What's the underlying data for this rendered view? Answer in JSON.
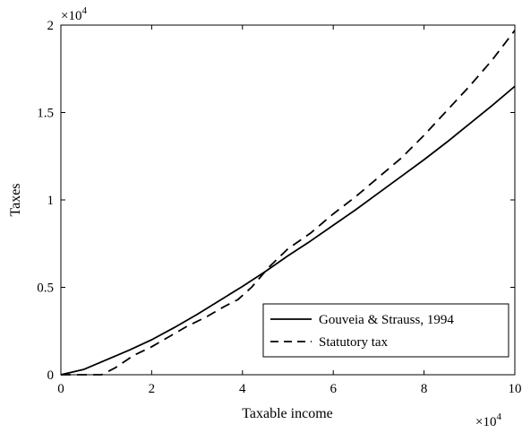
{
  "chart_data": {
    "type": "line",
    "xlabel": "Taxable income",
    "ylabel": "Taxes",
    "xlim": [
      0,
      100000
    ],
    "ylim": [
      0,
      20000
    ],
    "x_ticks": [
      0,
      20000,
      40000,
      60000,
      80000,
      100000
    ],
    "x_tick_labels": [
      "0",
      "2",
      "4",
      "6",
      "8",
      "10"
    ],
    "y_ticks": [
      0,
      5000,
      10000,
      15000,
      20000
    ],
    "y_tick_labels": [
      "0",
      "0.5",
      "1",
      "1.5",
      "2"
    ],
    "x_multiplier": {
      "base": "×10",
      "exp": "4"
    },
    "y_multiplier": {
      "base": "×10",
      "exp": "4"
    },
    "grid": false,
    "legend_position": "bottom-right",
    "series": [
      {
        "name": "Gouveia & Strauss, 1994",
        "style": "solid",
        "color": "#000000",
        "x": [
          0,
          5000,
          10000,
          15000,
          20000,
          25000,
          30000,
          35000,
          40000,
          45000,
          50000,
          55000,
          60000,
          65000,
          70000,
          75000,
          80000,
          85000,
          90000,
          95000,
          100000
        ],
        "y": [
          0,
          300,
          850,
          1400,
          2000,
          2700,
          3450,
          4250,
          5050,
          5900,
          6800,
          7650,
          8550,
          9450,
          10400,
          11350,
          12300,
          13300,
          14350,
          15400,
          16500
        ]
      },
      {
        "name": "Statutory tax",
        "style": "dashed",
        "color": "#000000",
        "x": [
          0,
          5000,
          9000,
          12000,
          16000,
          20000,
          24000,
          28000,
          32000,
          36000,
          39000,
          42000,
          46000,
          50000,
          55000,
          60000,
          65000,
          70000,
          75000,
          80000,
          85000,
          90000,
          95000,
          100000
        ],
        "y": [
          0,
          0,
          0,
          400,
          1100,
          1600,
          2200,
          2800,
          3300,
          3900,
          4300,
          5000,
          6200,
          7200,
          8100,
          9200,
          10200,
          11300,
          12400,
          13700,
          15100,
          16500,
          18000,
          19700
        ]
      }
    ]
  }
}
